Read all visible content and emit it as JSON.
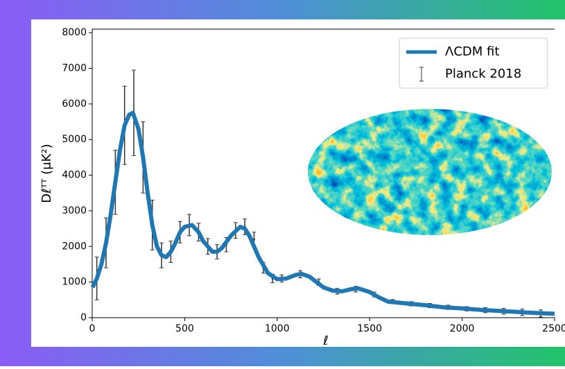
{
  "chart_data": {
    "type": "line",
    "x_label": "ℓ",
    "y_label": "Dℓᵀᵀ (μK²)",
    "xlim": [
      0,
      2500
    ],
    "ylim": [
      0,
      8100
    ],
    "xticks": [
      0,
      500,
      1000,
      1500,
      2000,
      2500
    ],
    "yticks": [
      0,
      1000,
      2000,
      3000,
      4000,
      5000,
      6000,
      7000,
      8000
    ],
    "legend": "upper right",
    "series": [
      {
        "name": "ΛCDM fit",
        "color": "#1f77b4",
        "x": [
          2,
          25,
          50,
          75,
          100,
          125,
          150,
          175,
          200,
          220,
          250,
          275,
          300,
          325,
          350,
          375,
          400,
          425,
          450,
          475,
          500,
          540,
          575,
          600,
          650,
          675,
          700,
          750,
          800,
          825,
          850,
          900,
          950,
          1000,
          1050,
          1100,
          1130,
          1175,
          1200,
          1250,
          1300,
          1350,
          1400,
          1440,
          1500,
          1550,
          1600,
          1700,
          1800,
          1900,
          2000,
          2100,
          2200,
          2300,
          2400,
          2500
        ],
        "values": [
          850,
          1100,
          1500,
          2100,
          2900,
          3800,
          4700,
          5400,
          5700,
          5750,
          5300,
          4500,
          3500,
          2600,
          2000,
          1750,
          1700,
          1850,
          2100,
          2400,
          2550,
          2600,
          2400,
          2150,
          1850,
          1850,
          1950,
          2300,
          2550,
          2500,
          2300,
          1700,
          1250,
          1080,
          1100,
          1200,
          1230,
          1150,
          1050,
          850,
          760,
          740,
          800,
          820,
          720,
          570,
          450,
          400,
          350,
          290,
          260,
          220,
          190,
          160,
          130,
          110
        ]
      },
      {
        "name": "Planck 2018",
        "color": "#333333",
        "x": [
          25,
          75,
          125,
          175,
          225,
          275,
          325,
          375,
          425,
          475,
          525,
          575,
          625,
          675,
          725,
          775,
          825,
          875,
          925,
          975,
          1025,
          1125,
          1225,
          1325,
          1425,
          1525,
          1625,
          1725,
          1825,
          1925,
          2025,
          2125,
          2225,
          2325,
          2425
        ],
        "values": [
          1100,
          2100,
          3800,
          5400,
          5750,
          4500,
          2600,
          1750,
          1850,
          2400,
          2600,
          2400,
          2000,
          1850,
          2050,
          2450,
          2550,
          2200,
          1400,
          1100,
          1100,
          1220,
          1000,
          740,
          800,
          650,
          450,
          390,
          340,
          290,
          250,
          210,
          180,
          150,
          120
        ],
        "errors": [
          600,
          700,
          900,
          1100,
          1200,
          1000,
          700,
          350,
          300,
          300,
          300,
          250,
          220,
          200,
          200,
          220,
          220,
          200,
          150,
          120,
          100,
          100,
          90,
          80,
          80,
          70,
          60,
          60,
          60,
          60,
          60,
          70,
          80,
          90,
          100
        ]
      }
    ]
  }
}
